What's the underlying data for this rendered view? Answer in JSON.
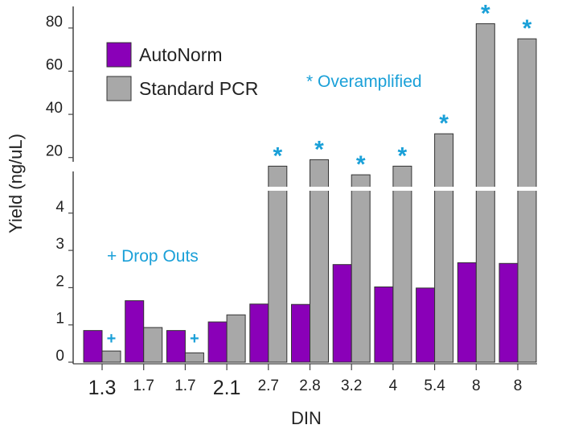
{
  "chart_data": {
    "type": "bar",
    "categories": [
      "1.3",
      "1.7",
      "1.7",
      "2.1",
      "2.7",
      "2.8",
      "3.2",
      "4",
      "5.4",
      "8",
      "8"
    ],
    "large_categories": [
      0,
      3
    ],
    "series": [
      {
        "name": "AutoNorm",
        "color": "#8a00b8",
        "values": [
          0.85,
          1.65,
          0.85,
          1.08,
          1.56,
          1.55,
          2.62,
          2.02,
          1.99,
          2.67,
          2.65
        ]
      },
      {
        "name": "Standard PCR",
        "color": "#a8a8a8",
        "values": [
          0.3,
          0.93,
          0.25,
          1.27,
          16,
          19,
          12,
          16,
          31,
          82,
          75
        ]
      }
    ],
    "series_marks": [
      [
        "",
        "",
        "",
        "",
        "",
        "",
        "",
        "",
        "",
        "",
        ""
      ],
      [
        "+",
        "",
        "+",
        "",
        "*",
        "*",
        "*",
        "*",
        "*",
        "*",
        "*"
      ]
    ],
    "mark_colors": {
      "+": "#1aa0d8",
      "*": "#1aa0d8"
    },
    "xlabel": "DIN",
    "ylabel": "Yield (ng/uL)",
    "y_lower": {
      "range": [
        0,
        4.6
      ],
      "ticks": [
        "0",
        "1",
        "2",
        "3",
        "4"
      ]
    },
    "y_upper": {
      "range": [
        4.6,
        90
      ],
      "ticks": [
        "20",
        "40",
        "60",
        "80"
      ]
    },
    "axis_break": true,
    "legend_position": "top-left",
    "annotations": [
      "* Overamplified",
      "+ Drop Outs"
    ]
  }
}
